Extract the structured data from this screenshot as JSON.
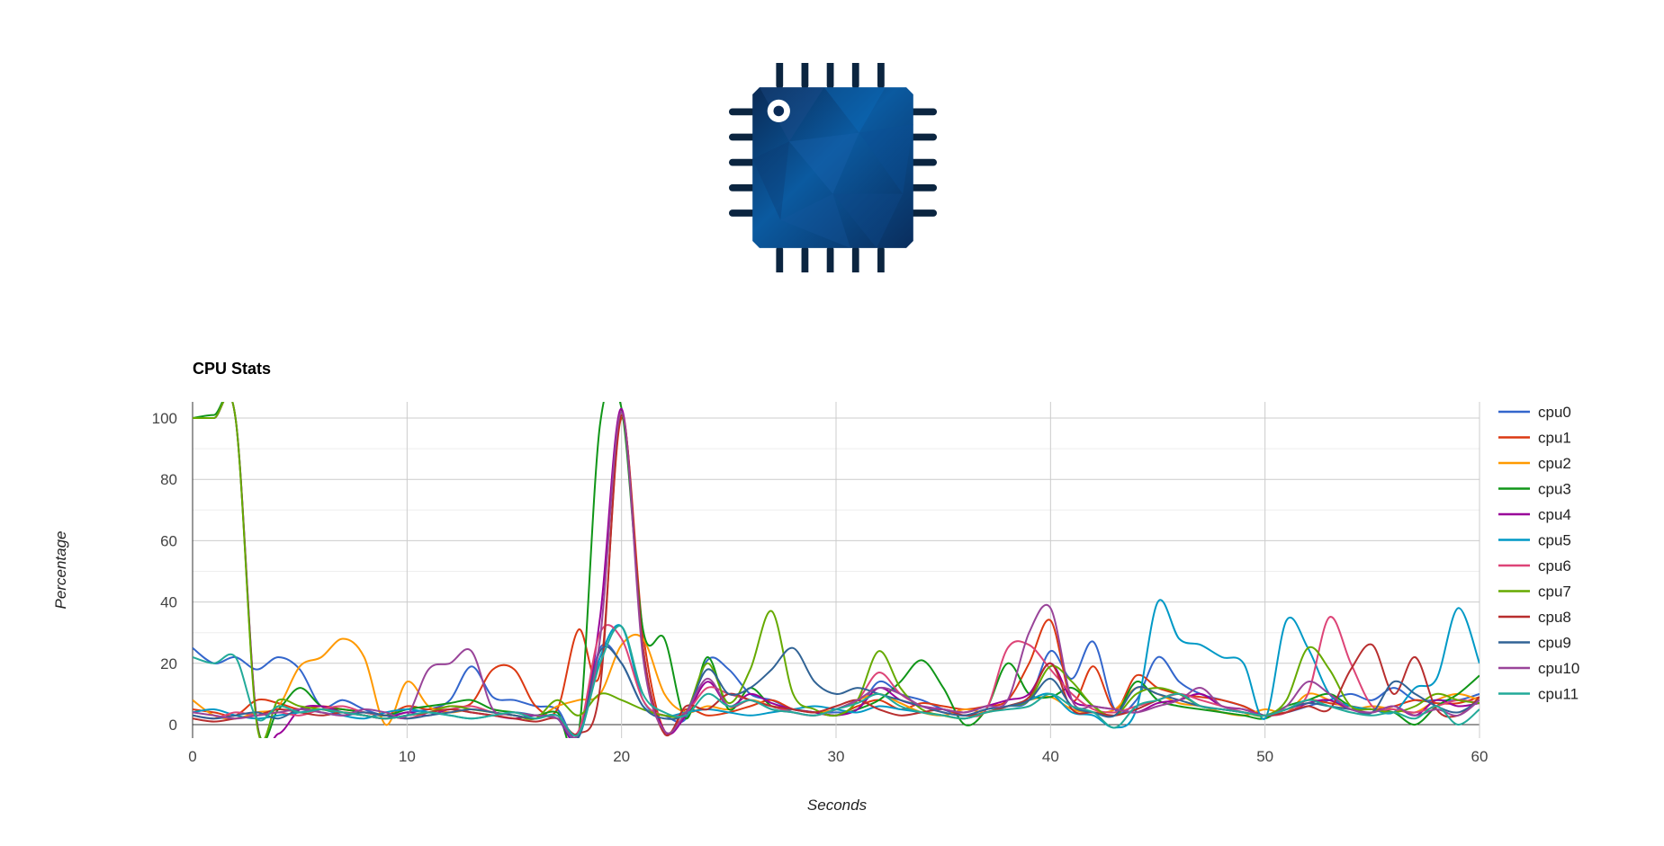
{
  "logo": {
    "icon": "cpu-chip-icon"
  },
  "chart_data": {
    "type": "line",
    "title": "CPU Stats",
    "xlabel": "Seconds",
    "ylabel": "Percentage",
    "xlim": [
      0,
      60
    ],
    "ylim": [
      -5,
      105
    ],
    "x_ticks": [
      0,
      10,
      20,
      30,
      40,
      50,
      60
    ],
    "y_ticks": [
      0,
      20,
      40,
      60,
      80,
      100
    ],
    "grid": true,
    "legend_position": "right",
    "x": [
      0,
      1,
      2,
      3,
      4,
      5,
      6,
      7,
      8,
      9,
      10,
      11,
      12,
      13,
      14,
      15,
      16,
      17,
      18,
      19,
      20,
      21,
      22,
      23,
      24,
      25,
      26,
      27,
      28,
      29,
      30,
      31,
      32,
      33,
      34,
      35,
      36,
      37,
      38,
      39,
      40,
      41,
      42,
      43,
      44,
      45,
      46,
      47,
      48,
      49,
      50,
      51,
      52,
      53,
      54,
      55,
      56,
      57,
      58,
      59,
      60
    ],
    "series": [
      {
        "name": "cpu0",
        "color": "#3366cc",
        "values": [
          25,
          20,
          22,
          18,
          22,
          18,
          6,
          8,
          5,
          3,
          4,
          5,
          8,
          19,
          9,
          8,
          6,
          5,
          -4,
          25,
          20,
          6,
          3,
          2,
          21,
          18,
          10,
          8,
          5,
          4,
          4,
          5,
          14,
          10,
          8,
          5,
          3,
          5,
          6,
          8,
          24,
          15,
          27,
          5,
          8,
          22,
          14,
          10,
          8,
          6,
          3,
          4,
          6,
          8,
          10,
          8,
          12,
          8,
          8,
          8,
          10
        ]
      },
      {
        "name": "cpu1",
        "color": "#dc3912",
        "values": [
          5,
          4,
          3,
          8,
          7,
          5,
          6,
          5,
          4,
          3,
          6,
          5,
          6,
          7,
          18,
          18,
          6,
          5,
          31,
          17,
          100,
          30,
          -2,
          5,
          3,
          4,
          6,
          8,
          5,
          4,
          3,
          6,
          8,
          5,
          7,
          6,
          5,
          6,
          8,
          20,
          34,
          8,
          19,
          5,
          16,
          12,
          10,
          9,
          8,
          6,
          3,
          5,
          8,
          7,
          6,
          5,
          6,
          8,
          7,
          7,
          9
        ]
      },
      {
        "name": "cpu2",
        "color": "#ff9900",
        "values": [
          8,
          3,
          2,
          4,
          6,
          19,
          22,
          28,
          22,
          0,
          14,
          6,
          4,
          5,
          4,
          3,
          2,
          6,
          8,
          10,
          26,
          28,
          10,
          4,
          6,
          5,
          8,
          6,
          5,
          4,
          5,
          8,
          10,
          7,
          4,
          3,
          5,
          4,
          6,
          8,
          9,
          5,
          4,
          5,
          12,
          10,
          7,
          6,
          4,
          3,
          5,
          4,
          10,
          8,
          5,
          6,
          5,
          4,
          8,
          10,
          8
        ]
      },
      {
        "name": "cpu3",
        "color": "#109618",
        "values": [
          100,
          101,
          100,
          1,
          5,
          12,
          6,
          5,
          4,
          3,
          5,
          6,
          7,
          8,
          5,
          4,
          3,
          4,
          -3,
          98,
          103,
          31,
          28,
          2,
          22,
          5,
          12,
          6,
          5,
          4,
          3,
          5,
          8,
          14,
          21,
          12,
          0,
          5,
          20,
          10,
          9,
          12,
          6,
          3,
          14,
          8,
          6,
          5,
          4,
          3,
          2,
          6,
          8,
          10,
          6,
          5,
          4,
          0,
          6,
          10,
          16
        ]
      },
      {
        "name": "cpu4",
        "color": "#990099",
        "values": [
          100,
          100,
          100,
          1,
          -3,
          5,
          6,
          4,
          3,
          2,
          4,
          3,
          5,
          4,
          3,
          2,
          3,
          2,
          -4,
          35,
          103,
          25,
          -2,
          3,
          14,
          6,
          10,
          7,
          5,
          4,
          3,
          5,
          12,
          8,
          6,
          5,
          4,
          6,
          8,
          10,
          20,
          8,
          6,
          5,
          4,
          7,
          8,
          10,
          6,
          5,
          3,
          4,
          7,
          8,
          5,
          4,
          6,
          3,
          8,
          6,
          7
        ]
      },
      {
        "name": "cpu5",
        "color": "#0099c6",
        "values": [
          4,
          5,
          3,
          2,
          3,
          4,
          5,
          3,
          2,
          4,
          5,
          4,
          3,
          2,
          3,
          4,
          3,
          2,
          -4,
          22,
          32,
          8,
          3,
          4,
          5,
          4,
          3,
          4,
          5,
          6,
          5,
          4,
          6,
          5,
          4,
          3,
          2,
          4,
          6,
          8,
          10,
          4,
          3,
          -1,
          5,
          40,
          28,
          26,
          22,
          20,
          2,
          34,
          25,
          10,
          6,
          5,
          4,
          12,
          15,
          38,
          20
        ]
      },
      {
        "name": "cpu6",
        "color": "#dd4477",
        "values": [
          3,
          2,
          4,
          3,
          4,
          3,
          5,
          6,
          4,
          3,
          2,
          4,
          5,
          6,
          4,
          3,
          2,
          3,
          -2,
          30,
          28,
          8,
          3,
          4,
          12,
          10,
          8,
          6,
          4,
          3,
          5,
          8,
          17,
          10,
          6,
          4,
          3,
          5,
          25,
          26,
          18,
          10,
          5,
          4,
          6,
          8,
          10,
          8,
          6,
          4,
          3,
          4,
          10,
          35,
          20,
          6,
          5,
          4,
          6,
          8,
          7
        ]
      },
      {
        "name": "cpu7",
        "color": "#66aa00",
        "values": [
          100,
          100,
          100,
          0,
          8,
          6,
          5,
          4,
          3,
          2,
          3,
          4,
          6,
          5,
          4,
          3,
          2,
          8,
          3,
          10,
          8,
          5,
          3,
          4,
          20,
          7,
          18,
          37,
          10,
          5,
          3,
          8,
          24,
          12,
          5,
          3,
          2,
          4,
          6,
          8,
          19,
          14,
          6,
          3,
          10,
          12,
          10,
          6,
          5,
          4,
          3,
          8,
          25,
          18,
          6,
          5,
          4,
          6,
          10,
          8,
          7
        ]
      },
      {
        "name": "cpu8",
        "color": "#b82e2e",
        "values": [
          2,
          1,
          2,
          3,
          5,
          4,
          3,
          4,
          3,
          2,
          3,
          4,
          5,
          4,
          3,
          2,
          1,
          2,
          -3,
          12,
          101,
          25,
          -3,
          6,
          5,
          10,
          8,
          6,
          5,
          4,
          6,
          8,
          5,
          3,
          4,
          5,
          3,
          4,
          6,
          9,
          20,
          5,
          4,
          3,
          5,
          8,
          10,
          6,
          5,
          4,
          3,
          4,
          6,
          5,
          18,
          26,
          10,
          22,
          5,
          3,
          9
        ]
      },
      {
        "name": "cpu9",
        "color": "#316395",
        "values": [
          3,
          2,
          3,
          4,
          2,
          5,
          4,
          3,
          4,
          3,
          2,
          3,
          4,
          5,
          4,
          3,
          2,
          3,
          -4,
          24,
          20,
          6,
          2,
          4,
          18,
          10,
          12,
          18,
          25,
          14,
          10,
          12,
          10,
          8,
          6,
          4,
          3,
          5,
          6,
          8,
          15,
          6,
          4,
          3,
          12,
          10,
          8,
          6,
          5,
          4,
          3,
          5,
          7,
          6,
          5,
          4,
          14,
          10,
          6,
          4,
          8
        ]
      },
      {
        "name": "cpu10",
        "color": "#994499",
        "values": [
          4,
          3,
          2,
          3,
          4,
          5,
          4,
          3,
          5,
          4,
          3,
          18,
          20,
          24,
          5,
          4,
          3,
          2,
          -3,
          28,
          102,
          22,
          -2,
          4,
          15,
          6,
          8,
          5,
          4,
          3,
          5,
          8,
          12,
          10,
          6,
          5,
          4,
          6,
          8,
          30,
          38,
          8,
          6,
          5,
          4,
          6,
          8,
          12,
          6,
          5,
          3,
          6,
          14,
          10,
          5,
          4,
          6,
          3,
          5,
          3,
          8
        ]
      },
      {
        "name": "cpu11",
        "color": "#22aa99",
        "values": [
          22,
          20,
          22,
          2,
          6,
          4,
          5,
          4,
          3,
          2,
          3,
          4,
          3,
          2,
          3,
          4,
          2,
          3,
          -3,
          20,
          32,
          10,
          4,
          3,
          10,
          6,
          8,
          5,
          4,
          3,
          5,
          7,
          10,
          6,
          4,
          3,
          2,
          4,
          5,
          6,
          10,
          6,
          4,
          -1,
          6,
          8,
          10,
          6,
          5,
          4,
          3,
          5,
          8,
          6,
          4,
          3,
          4,
          2,
          6,
          0,
          5
        ]
      }
    ]
  }
}
